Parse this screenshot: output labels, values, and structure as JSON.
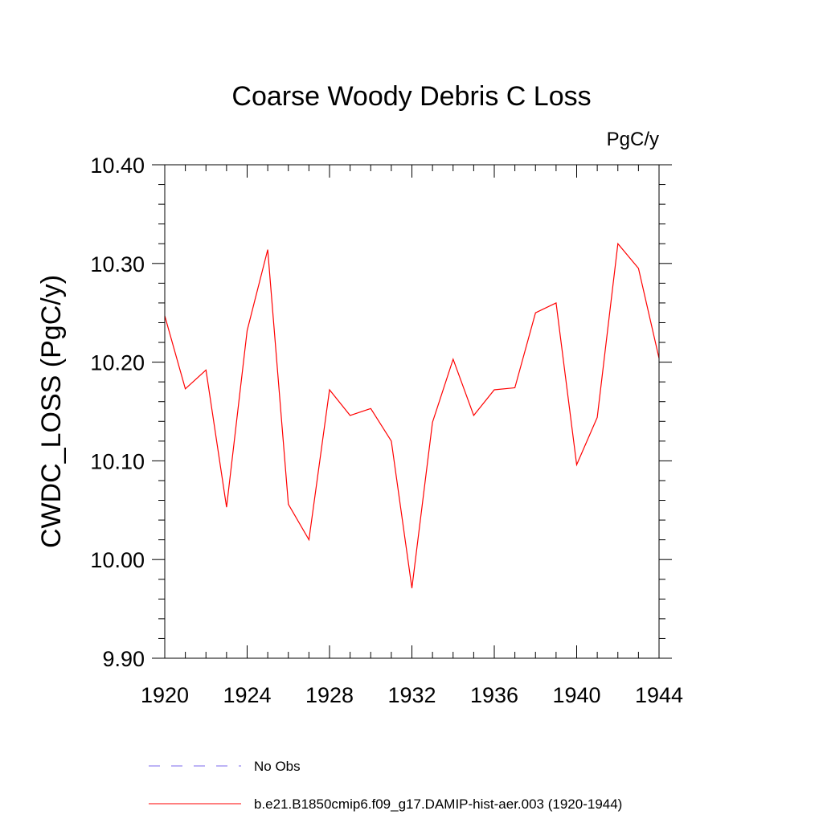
{
  "chart_data": {
    "type": "line",
    "title": "Coarse Woody Debris C Loss",
    "units": "PgC/y",
    "xlabel": "",
    "ylabel": "CWDC_LOSS  (PgC/y)",
    "xlim": [
      1920,
      1944
    ],
    "ylim": [
      9.9,
      10.4
    ],
    "x_ticks": [
      "1920",
      "1924",
      "1928",
      "1932",
      "1936",
      "1940",
      "1944"
    ],
    "y_ticks": [
      "9.90",
      "10.00",
      "10.10",
      "10.20",
      "10.30",
      "10.40"
    ],
    "grid": false,
    "legend_position": "bottom",
    "series": [
      {
        "name": "b.e21.B1850cmip6.f09_g17.DAMIP-hist-aer.003 (1920-1944)",
        "color": "#ff0000",
        "style": "solid",
        "x": [
          1920,
          1921,
          1922,
          1923,
          1924,
          1925,
          1926,
          1927,
          1928,
          1929,
          1930,
          1931,
          1932,
          1933,
          1934,
          1935,
          1936,
          1937,
          1938,
          1939,
          1940,
          1941,
          1942,
          1943,
          1944
        ],
        "values": [
          10.247,
          10.173,
          10.192,
          10.053,
          10.232,
          10.314,
          10.056,
          10.02,
          10.172,
          10.146,
          10.153,
          10.12,
          9.971,
          10.139,
          10.203,
          10.146,
          10.172,
          10.174,
          10.25,
          10.26,
          10.096,
          10.144,
          10.32,
          10.295,
          10.204
        ]
      }
    ],
    "legend": [
      {
        "label": "No Obs",
        "color": "#7b68ee",
        "style": "dashed"
      },
      {
        "label": "b.e21.B1850cmip6.f09_g17.DAMIP-hist-aer.003 (1920-1944)",
        "color": "#ff0000",
        "style": "solid"
      }
    ]
  }
}
